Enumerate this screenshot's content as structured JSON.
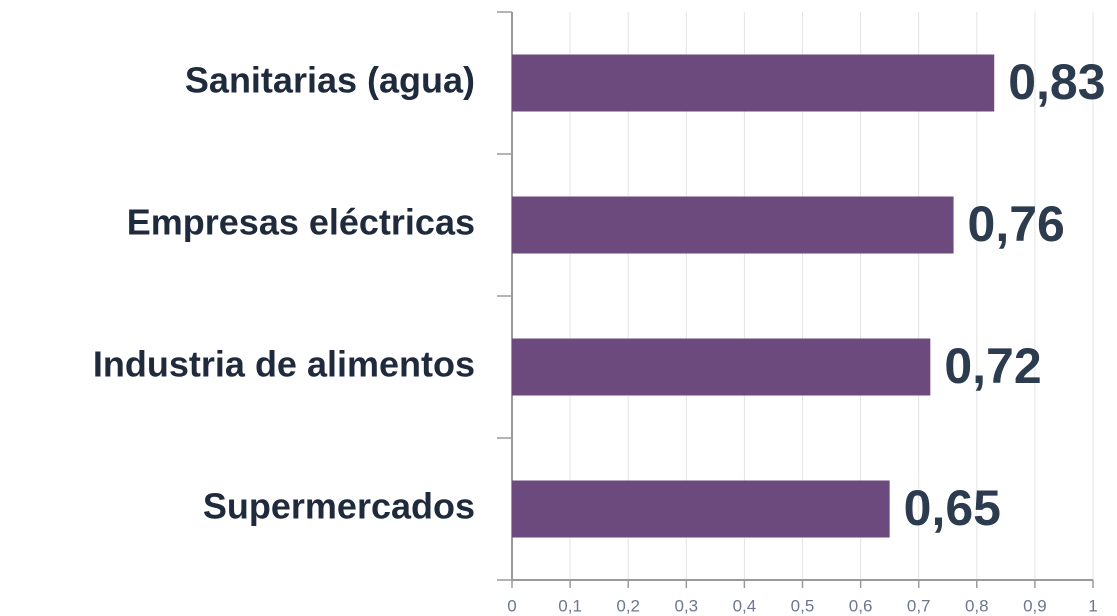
{
  "chart_data": {
    "type": "bar",
    "orientation": "horizontal",
    "categories": [
      "Sanitarias (agua)",
      "Empresas eléctricas",
      "Industria de alimentos",
      "Supermercados"
    ],
    "values": [
      0.83,
      0.76,
      0.72,
      0.65
    ],
    "value_labels": [
      "0,83",
      "0,76",
      "0,72",
      "0,65"
    ],
    "color": "#6d4a7d",
    "xlim": [
      0,
      1
    ],
    "xticks": [
      0,
      {
        "value": 0.1,
        "label": "0,1"
      },
      {
        "value": 0.2,
        "label": "0,2"
      },
      {
        "value": 0.3,
        "label": "0,3"
      },
      {
        "value": 0.4,
        "label": "0,4"
      },
      {
        "value": 0.5,
        "label": "0,5"
      },
      {
        "value": 0.6,
        "label": "0,6"
      },
      {
        "value": 0.7,
        "label": "0,7"
      },
      {
        "value": 0.8,
        "label": "0,8"
      },
      {
        "value": 0.9,
        "label": "0,9"
      },
      1
    ],
    "grid": true
  }
}
